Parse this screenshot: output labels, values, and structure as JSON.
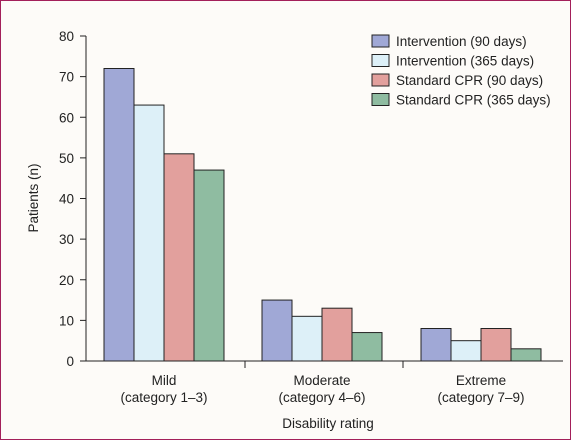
{
  "chart_data": {
    "type": "bar",
    "title": "",
    "xlabel": "Disability rating",
    "ylabel": "Patients (n)",
    "ylim": [
      0,
      80
    ],
    "yticks": [
      0,
      10,
      20,
      30,
      40,
      50,
      60,
      70,
      80
    ],
    "categories": [
      {
        "line1": "Mild",
        "line2": "(category 1–3)"
      },
      {
        "line1": "Moderate",
        "line2": "(category 4–6)"
      },
      {
        "line1": "Extreme",
        "line2": "(category 7–9)"
      }
    ],
    "series": [
      {
        "name": "Intervention (90 days)",
        "color": "#a0a8d6",
        "values": [
          72,
          15,
          8
        ]
      },
      {
        "name": "Intervention (365 days)",
        "color": "#ddf0f8",
        "values": [
          63,
          11,
          5
        ]
      },
      {
        "name": "Standard CPR (90 days)",
        "color": "#e2a09d",
        "values": [
          51,
          13,
          8
        ]
      },
      {
        "name": "Standard CPR (365 days)",
        "color": "#8fbca1",
        "values": [
          47,
          7,
          3
        ]
      }
    ],
    "legend_position": "top-right",
    "grid": false
  }
}
